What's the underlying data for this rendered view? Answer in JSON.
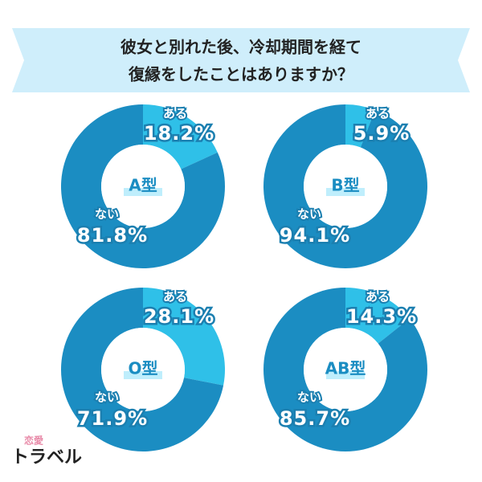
{
  "header": {
    "title_lines": [
      "彼女と別れた後、冷却期間を経て",
      "復縁をしたことはありますか？"
    ]
  },
  "logo": {
    "top": "恋愛",
    "bottom": "トラベル"
  },
  "chart_data": [
    {
      "type": "donut",
      "center_label": "A型",
      "categories": [
        "ある",
        "ない"
      ],
      "values": [
        18.2,
        81.8
      ],
      "value_labels": [
        "18.2%",
        "81.8%"
      ],
      "colors": [
        "#2fc0e8",
        "#1b8dc2"
      ]
    },
    {
      "type": "donut",
      "center_label": "B型",
      "categories": [
        "ある",
        "ない"
      ],
      "values": [
        5.9,
        94.1
      ],
      "value_labels": [
        "5.9%",
        "94.1%"
      ],
      "colors": [
        "#2fc0e8",
        "#1b8dc2"
      ]
    },
    {
      "type": "donut",
      "center_label": "O型",
      "categories": [
        "ある",
        "ない"
      ],
      "values": [
        28.1,
        71.9
      ],
      "value_labels": [
        "28.1%",
        "71.9%"
      ],
      "colors": [
        "#2fc0e8",
        "#1b8dc2"
      ]
    },
    {
      "type": "donut",
      "center_label": "AB型",
      "categories": [
        "ある",
        "ない"
      ],
      "values": [
        14.3,
        85.7
      ],
      "value_labels": [
        "14.3%",
        "85.7%"
      ],
      "colors": [
        "#2fc0e8",
        "#1b8dc2"
      ]
    }
  ]
}
